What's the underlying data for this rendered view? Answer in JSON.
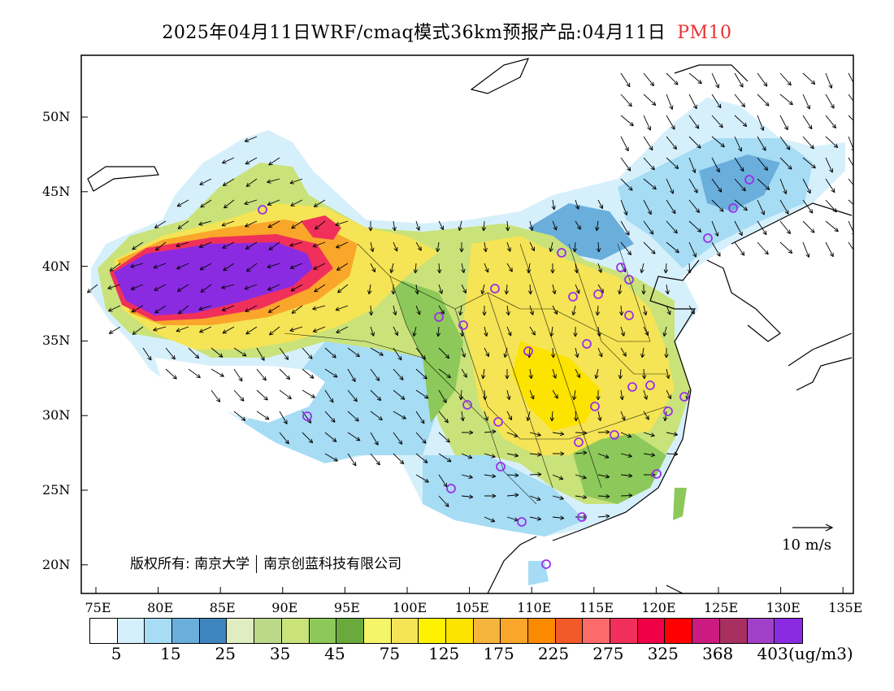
{
  "title": {
    "main": "2025年04月11日WRF/cmaq模式36km预报产品:04月11日",
    "variable": "PM10"
  },
  "axes": {
    "lon_labels": [
      "75E",
      "80E",
      "85E",
      "90E",
      "95E",
      "100E",
      "105E",
      "110E",
      "115E",
      "120E",
      "125E",
      "130E",
      "135E"
    ],
    "lat_labels": [
      "50N",
      "45N",
      "40N",
      "35N",
      "30N",
      "25N",
      "20N"
    ]
  },
  "wind_reference": {
    "label": "10 m/s"
  },
  "copyright": {
    "prefix": "版权所有:",
    "org1": "南京大学",
    "org2": "南京创蓝科技有限公司"
  },
  "legend": {
    "colors": [
      "#ffffff",
      "#d6f0fb",
      "#a6dcf4",
      "#6aaedc",
      "#3f86be",
      "#e0edc0",
      "#bcd98a",
      "#c9e27a",
      "#8cc95a",
      "#6aaa3c",
      "#f4f568",
      "#f5e455",
      "#fff200",
      "#fde300",
      "#f7b43c",
      "#f9a62a",
      "#fb8a00",
      "#f25a2a",
      "#fd6a6a",
      "#f0305a",
      "#f00046",
      "#ff0000",
      "#cb1a80",
      "#a83060",
      "#a040c8",
      "#8a2be2"
    ],
    "labels": [
      "5",
      "15",
      "25",
      "35",
      "45",
      "75",
      "125",
      "175",
      "225",
      "275",
      "325",
      "368",
      "403"
    ],
    "unit": "(ug/m3)"
  },
  "map_layers": {
    "colors": {
      "purple_core": "#8a2be2",
      "red_ring": "#f0305a",
      "orange": "#f9a62a",
      "yellow": "#fde300",
      "pale_yellow": "#f5e455",
      "light_green": "#c9e27a",
      "green": "#8cc95a",
      "dark_green": "#6aaa3c",
      "light_blue": "#d6f0fb",
      "mid_blue": "#a6dcf4",
      "blue": "#6aaedc",
      "station_circle": "#9a30e8"
    }
  }
}
